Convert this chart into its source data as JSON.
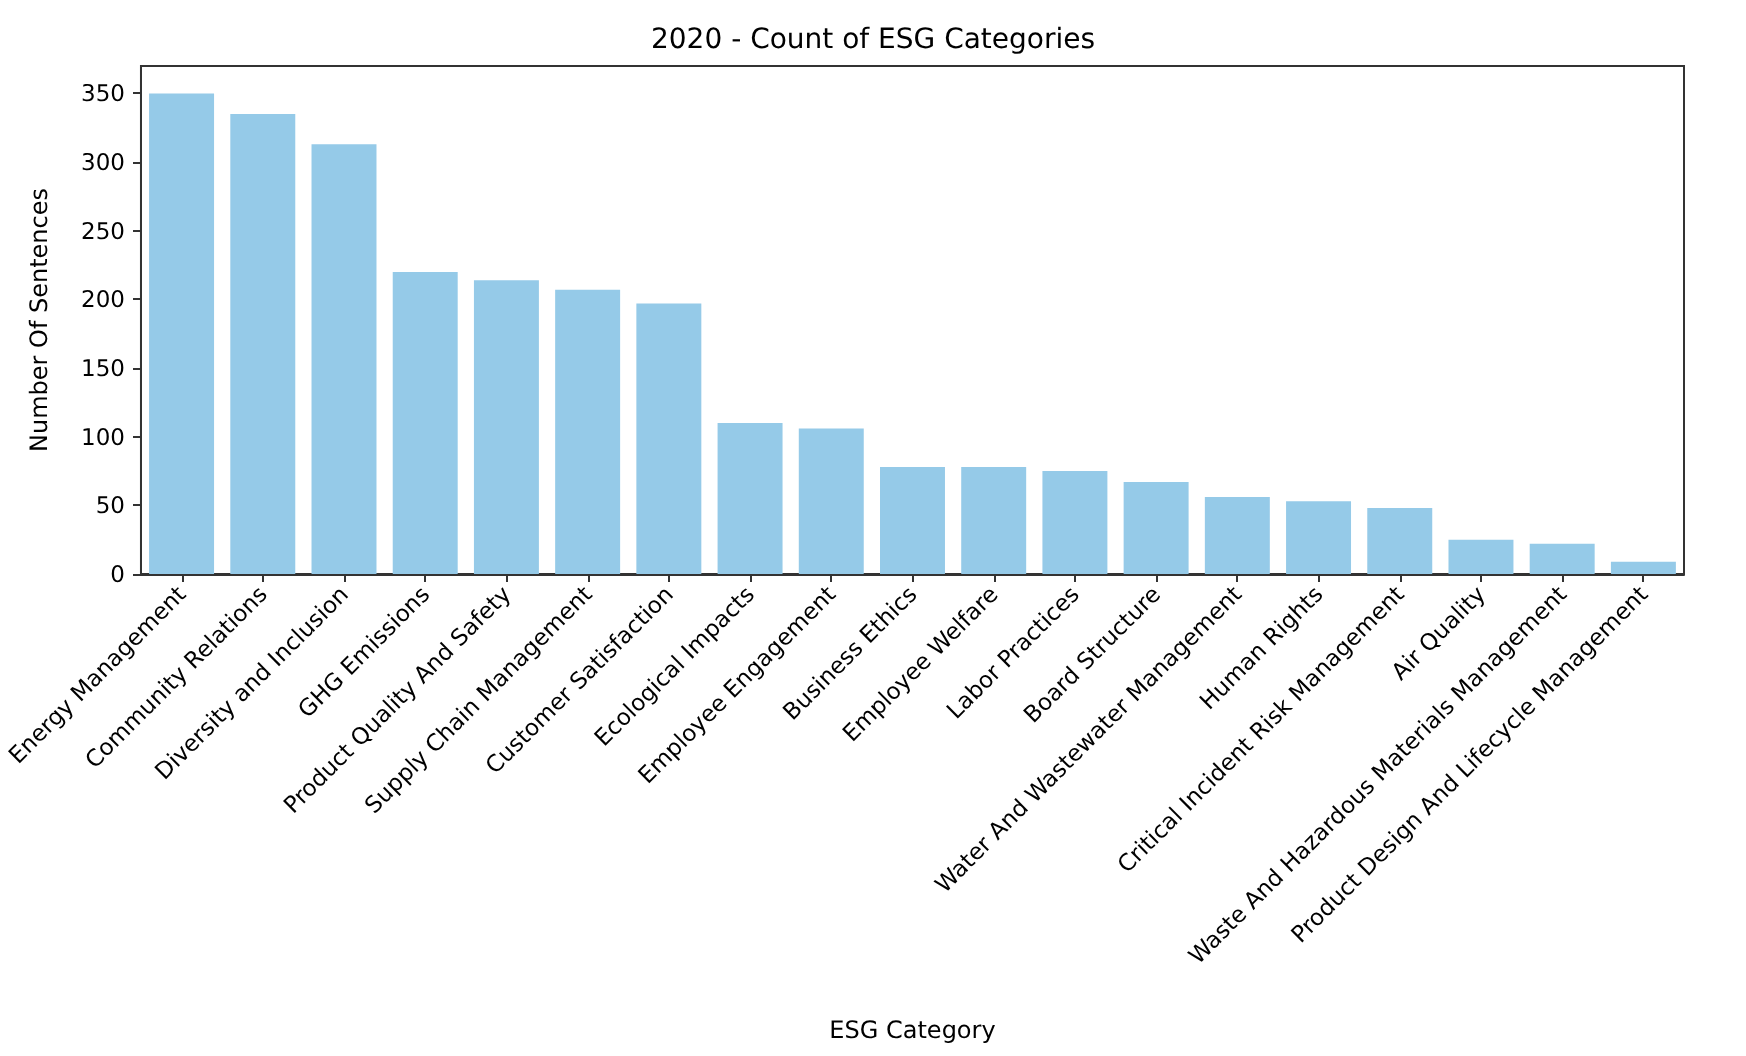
{
  "chart_data": {
    "type": "bar",
    "title": "2020 - Count of ESG Categories",
    "xlabel": "ESG Category",
    "ylabel": "Number Of Sentences",
    "categories": [
      "Energy Management",
      "Community Relations",
      "Diversity and Inclusion",
      "GHG Emissions",
      "Product Quality And Safety",
      "Supply Chain Management",
      "Customer Satisfaction",
      "Ecological Impacts",
      "Employee Engagement",
      "Business Ethics",
      "Employee Welfare",
      "Labor Practices",
      "Board Structure",
      "Water And Wastewater Management",
      "Human Rights",
      "Critical Incident Risk Management",
      "Air Quality",
      "Waste And Hazardous Materials Management",
      "Product Design And Lifecycle Management"
    ],
    "values": [
      350,
      335,
      313,
      220,
      214,
      207,
      197,
      110,
      106,
      78,
      78,
      75,
      67,
      56,
      53,
      48,
      25,
      22,
      9
    ],
    "color": "#95cae8",
    "ylim": [
      0,
      370
    ],
    "yticks": [
      0,
      50,
      100,
      150,
      200,
      250,
      300,
      350
    ],
    "grid": false
  }
}
